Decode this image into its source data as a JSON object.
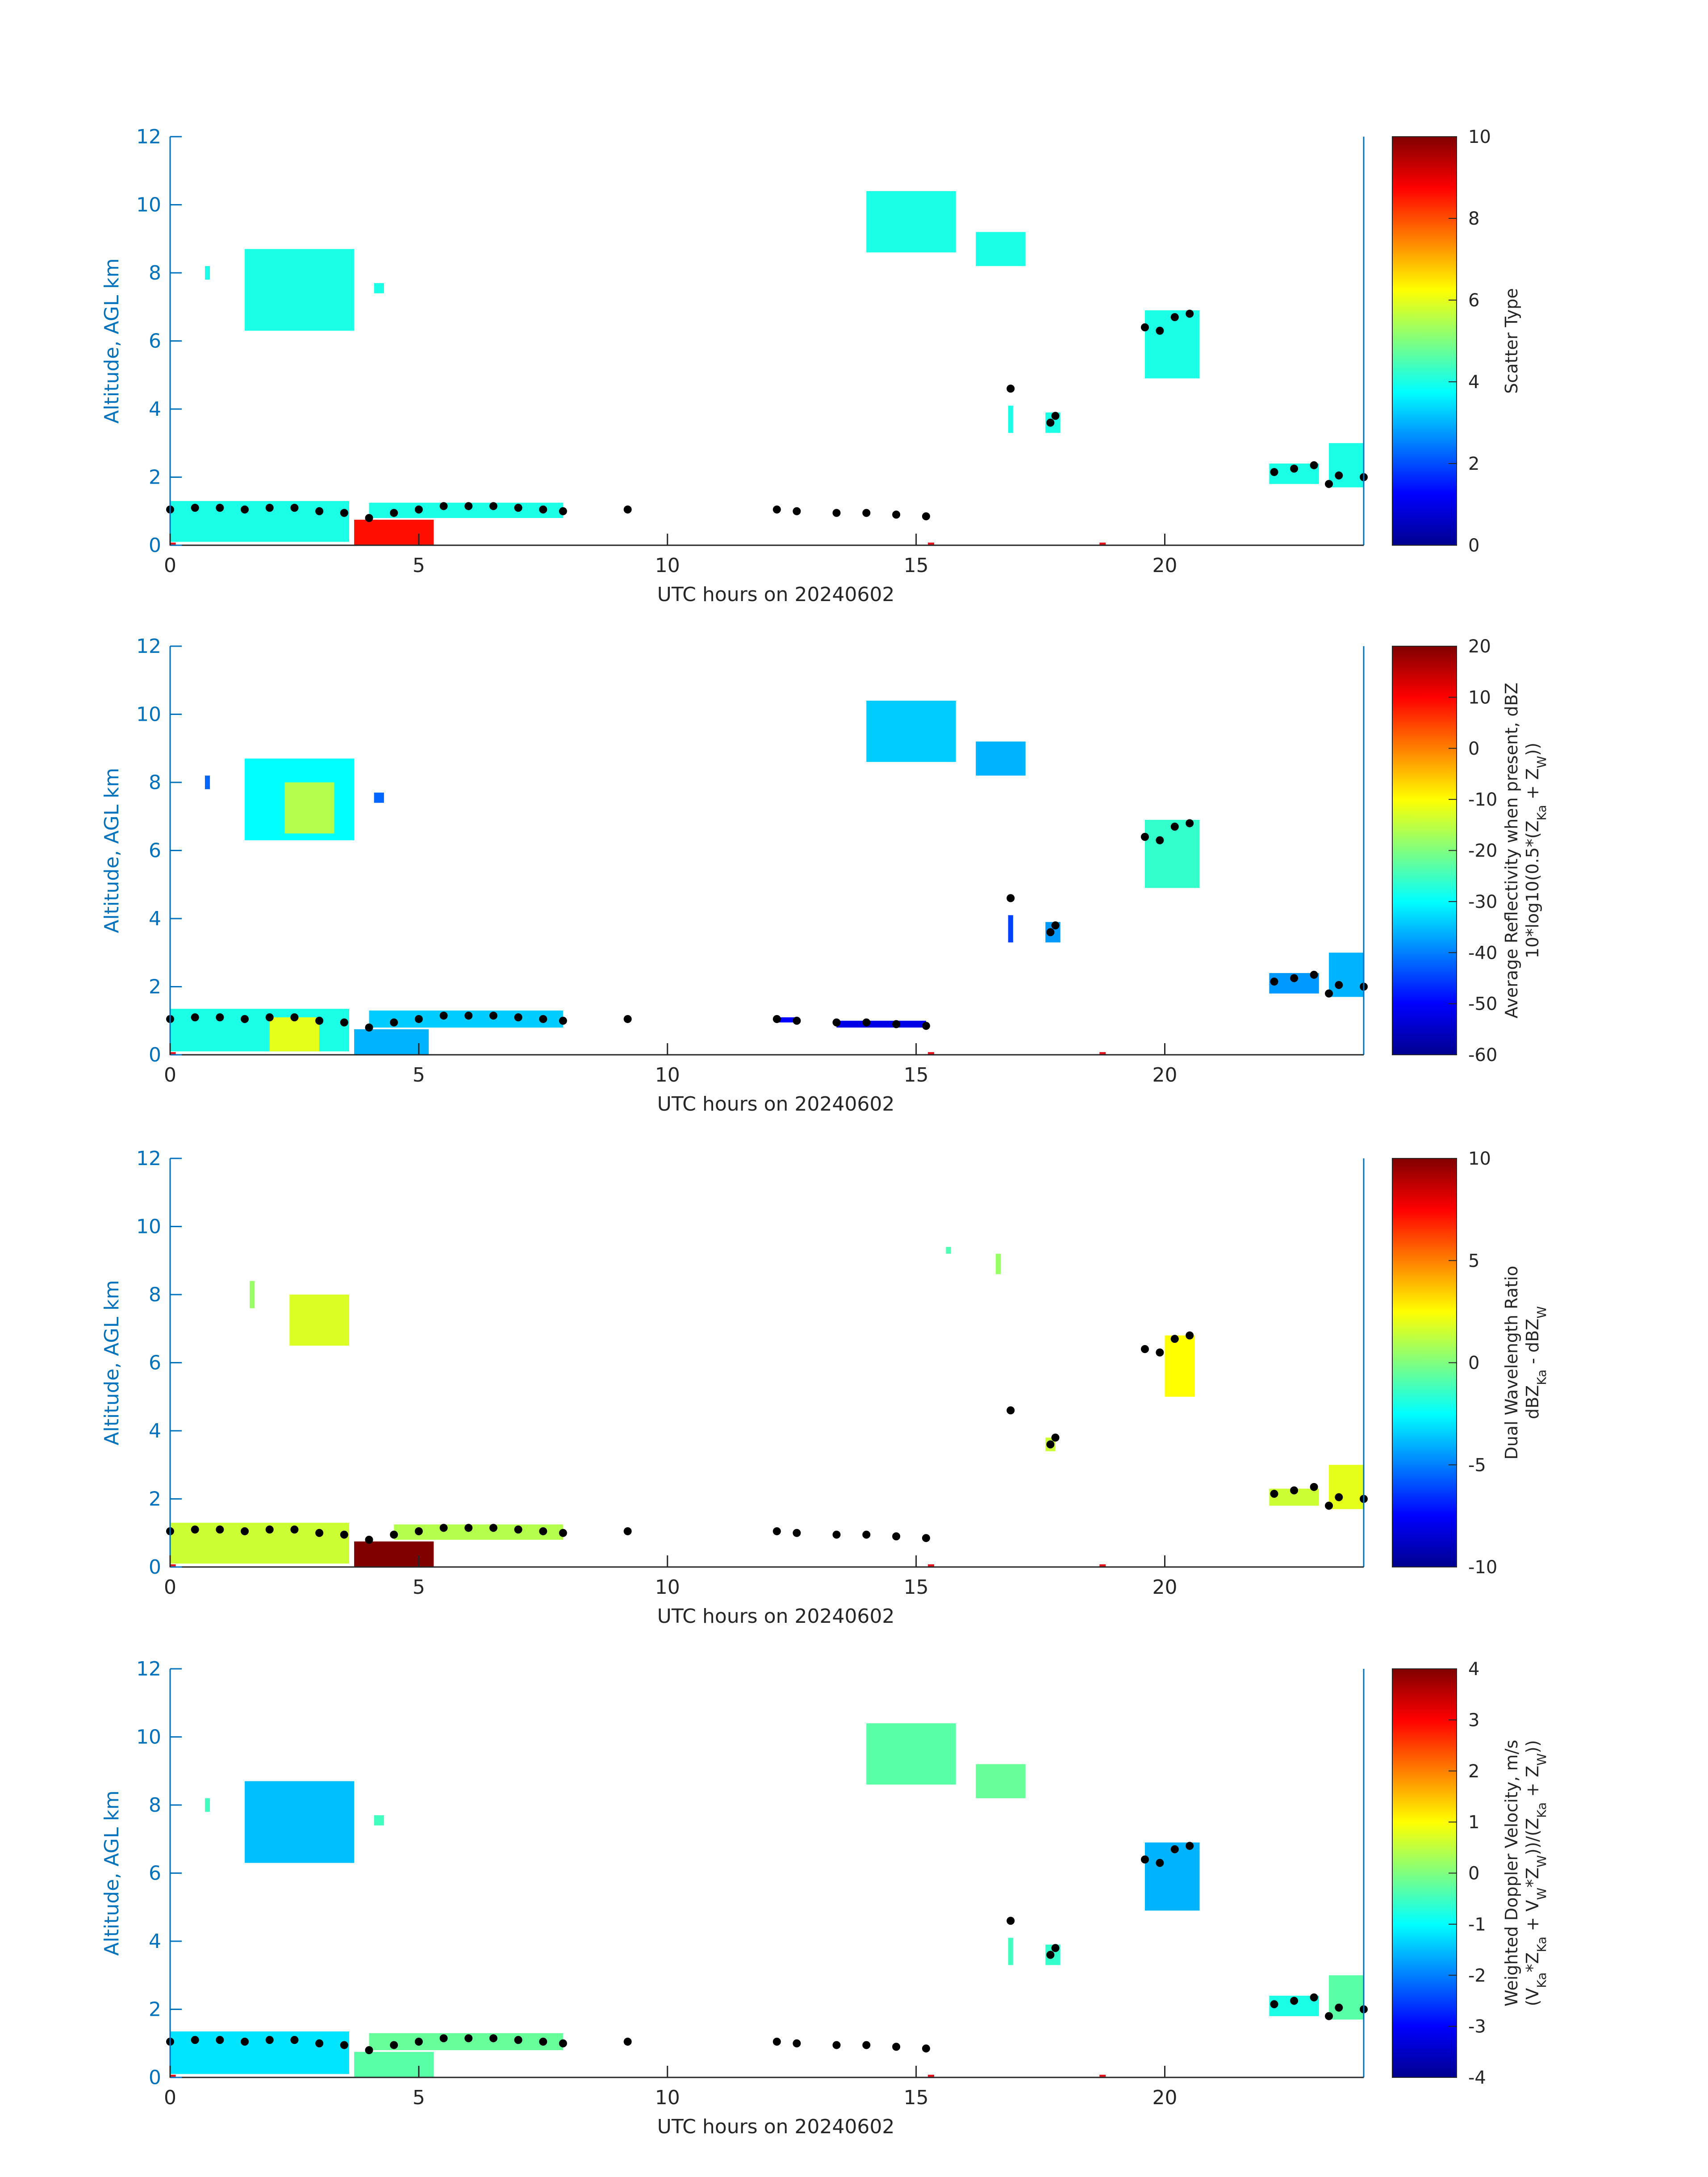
{
  "chart_data": [
    {
      "type": "heatmap",
      "xlabel": "UTC hours on 20240602",
      "ylabel": "Altitude, AGL km",
      "xlim": [
        0,
        24
      ],
      "ylim": [
        0,
        12
      ],
      "xticks": [
        0,
        5,
        10,
        15,
        20
      ],
      "yticks": [
        0,
        2,
        4,
        6,
        8,
        10,
        12
      ],
      "colorbar": {
        "label_lines": [
          "Scatter Type"
        ],
        "ticks": [
          0,
          2,
          4,
          6,
          8,
          10
        ],
        "range": [
          0,
          10
        ]
      },
      "regions": [
        {
          "x0": 0.0,
          "x1": 3.6,
          "y0": 0.1,
          "y1": 1.3,
          "value": 4.0
        },
        {
          "x0": 3.7,
          "x1": 5.3,
          "y0": 0.0,
          "y1": 0.75,
          "value": 8.6
        },
        {
          "x0": 4.0,
          "x1": 7.9,
          "y0": 0.8,
          "y1": 1.25,
          "value": 4.0
        },
        {
          "x0": 1.5,
          "x1": 3.7,
          "y0": 6.3,
          "y1": 8.7,
          "value": 4.0
        },
        {
          "x0": 0.7,
          "x1": 0.8,
          "y0": 7.8,
          "y1": 8.2,
          "value": 4.0
        },
        {
          "x0": 4.1,
          "x1": 4.3,
          "y0": 7.4,
          "y1": 7.7,
          "value": 4.0
        },
        {
          "x0": 14.0,
          "x1": 15.8,
          "y0": 8.6,
          "y1": 10.4,
          "value": 4.0
        },
        {
          "x0": 16.2,
          "x1": 17.2,
          "y0": 8.2,
          "y1": 9.2,
          "value": 4.0
        },
        {
          "x0": 19.6,
          "x1": 20.7,
          "y0": 4.9,
          "y1": 6.9,
          "value": 4.0
        },
        {
          "x0": 16.85,
          "x1": 16.95,
          "y0": 3.3,
          "y1": 4.1,
          "value": 4.0
        },
        {
          "x0": 17.6,
          "x1": 17.9,
          "y0": 3.3,
          "y1": 3.9,
          "value": 4.0
        },
        {
          "x0": 22.1,
          "x1": 23.1,
          "y0": 1.8,
          "y1": 2.4,
          "value": 4.0
        },
        {
          "x0": 23.3,
          "x1": 24.0,
          "y0": 1.7,
          "y1": 3.0,
          "value": 4.0
        }
      ],
      "cloud_top_points": [
        {
          "x": 0.0,
          "y": 1.05
        },
        {
          "x": 0.5,
          "y": 1.1
        },
        {
          "x": 1.0,
          "y": 1.1
        },
        {
          "x": 1.5,
          "y": 1.05
        },
        {
          "x": 2.0,
          "y": 1.1
        },
        {
          "x": 2.5,
          "y": 1.1
        },
        {
          "x": 3.0,
          "y": 1.0
        },
        {
          "x": 3.5,
          "y": 0.95
        },
        {
          "x": 4.0,
          "y": 0.8
        },
        {
          "x": 4.5,
          "y": 0.95
        },
        {
          "x": 5.0,
          "y": 1.05
        },
        {
          "x": 5.5,
          "y": 1.15
        },
        {
          "x": 6.0,
          "y": 1.15
        },
        {
          "x": 6.5,
          "y": 1.15
        },
        {
          "x": 7.0,
          "y": 1.1
        },
        {
          "x": 7.5,
          "y": 1.05
        },
        {
          "x": 7.9,
          "y": 1.0
        },
        {
          "x": 9.2,
          "y": 1.05
        },
        {
          "x": 12.2,
          "y": 1.05
        },
        {
          "x": 12.6,
          "y": 1.0
        },
        {
          "x": 13.4,
          "y": 0.95
        },
        {
          "x": 14.0,
          "y": 0.95
        },
        {
          "x": 14.6,
          "y": 0.9
        },
        {
          "x": 15.2,
          "y": 0.85
        },
        {
          "x": 16.9,
          "y": 4.6
        },
        {
          "x": 17.7,
          "y": 3.6
        },
        {
          "x": 17.8,
          "y": 3.8
        },
        {
          "x": 19.6,
          "y": 6.4
        },
        {
          "x": 19.9,
          "y": 6.3
        },
        {
          "x": 20.2,
          "y": 6.7
        },
        {
          "x": 20.5,
          "y": 6.8
        },
        {
          "x": 22.2,
          "y": 2.15
        },
        {
          "x": 22.6,
          "y": 2.25
        },
        {
          "x": 23.0,
          "y": 2.35
        },
        {
          "x": 23.3,
          "y": 1.8
        },
        {
          "x": 23.5,
          "y": 2.05
        },
        {
          "x": 24.0,
          "y": 2.0
        }
      ],
      "surface_marks_x": [
        0.05,
        15.3,
        18.75
      ]
    },
    {
      "type": "heatmap",
      "xlabel": "UTC hours on 20240602",
      "ylabel": "Altitude, AGL km",
      "xlim": [
        0,
        24
      ],
      "ylim": [
        0,
        12
      ],
      "xticks": [
        0,
        5,
        10,
        15,
        20
      ],
      "yticks": [
        0,
        2,
        4,
        6,
        8,
        10,
        12
      ],
      "colorbar": {
        "label_lines": [
          "Average Reflectivity when present, dBZ",
          "10*log10(0.5*(Z_Ka + Z_W))"
        ],
        "ticks": [
          -60,
          -50,
          -40,
          -30,
          -20,
          -10,
          0,
          10,
          20
        ],
        "range": [
          -60,
          20
        ]
      },
      "regions": [
        {
          "x0": 0.0,
          "x1": 3.6,
          "y0": 0.1,
          "y1": 1.35,
          "value": -28
        },
        {
          "x0": 2.0,
          "x1": 3.0,
          "y0": 0.1,
          "y1": 1.1,
          "value": -12
        },
        {
          "x0": 3.7,
          "x1": 5.2,
          "y0": 0.0,
          "y1": 0.75,
          "value": -36
        },
        {
          "x0": 4.0,
          "x1": 7.9,
          "y0": 0.8,
          "y1": 1.3,
          "value": -34
        },
        {
          "x0": 1.5,
          "x1": 3.7,
          "y0": 6.3,
          "y1": 8.7,
          "value": -30
        },
        {
          "x0": 2.3,
          "x1": 3.3,
          "y0": 6.5,
          "y1": 8.0,
          "value": -16
        },
        {
          "x0": 0.7,
          "x1": 0.8,
          "y0": 7.8,
          "y1": 8.2,
          "value": -42
        },
        {
          "x0": 4.1,
          "x1": 4.3,
          "y0": 7.4,
          "y1": 7.7,
          "value": -42
        },
        {
          "x0": 14.0,
          "x1": 15.8,
          "y0": 8.6,
          "y1": 10.4,
          "value": -34
        },
        {
          "x0": 16.2,
          "x1": 17.2,
          "y0": 8.2,
          "y1": 9.2,
          "value": -36
        },
        {
          "x0": 19.6,
          "x1": 20.7,
          "y0": 4.9,
          "y1": 6.9,
          "value": -26
        },
        {
          "x0": 16.85,
          "x1": 16.95,
          "y0": 3.3,
          "y1": 4.1,
          "value": -45
        },
        {
          "x0": 17.6,
          "x1": 17.9,
          "y0": 3.3,
          "y1": 3.9,
          "value": -38
        },
        {
          "x0": 22.1,
          "x1": 23.1,
          "y0": 1.8,
          "y1": 2.4,
          "value": -38
        },
        {
          "x0": 23.3,
          "x1": 24.0,
          "y0": 1.7,
          "y1": 3.0,
          "value": -36
        },
        {
          "x0": 12.2,
          "x1": 12.6,
          "y0": 0.95,
          "y1": 1.1,
          "value": -50
        },
        {
          "x0": 13.4,
          "x1": 15.2,
          "y0": 0.8,
          "y1": 1.0,
          "value": -52
        }
      ],
      "cloud_top_points": [
        {
          "x": 0.0,
          "y": 1.05
        },
        {
          "x": 0.5,
          "y": 1.1
        },
        {
          "x": 1.0,
          "y": 1.1
        },
        {
          "x": 1.5,
          "y": 1.05
        },
        {
          "x": 2.0,
          "y": 1.1
        },
        {
          "x": 2.5,
          "y": 1.1
        },
        {
          "x": 3.0,
          "y": 1.0
        },
        {
          "x": 3.5,
          "y": 0.95
        },
        {
          "x": 4.0,
          "y": 0.8
        },
        {
          "x": 4.5,
          "y": 0.95
        },
        {
          "x": 5.0,
          "y": 1.05
        },
        {
          "x": 5.5,
          "y": 1.15
        },
        {
          "x": 6.0,
          "y": 1.15
        },
        {
          "x": 6.5,
          "y": 1.15
        },
        {
          "x": 7.0,
          "y": 1.1
        },
        {
          "x": 7.5,
          "y": 1.05
        },
        {
          "x": 7.9,
          "y": 1.0
        },
        {
          "x": 9.2,
          "y": 1.05
        },
        {
          "x": 12.2,
          "y": 1.05
        },
        {
          "x": 12.6,
          "y": 1.0
        },
        {
          "x": 13.4,
          "y": 0.95
        },
        {
          "x": 14.0,
          "y": 0.95
        },
        {
          "x": 14.6,
          "y": 0.9
        },
        {
          "x": 15.2,
          "y": 0.85
        },
        {
          "x": 16.9,
          "y": 4.6
        },
        {
          "x": 17.7,
          "y": 3.6
        },
        {
          "x": 17.8,
          "y": 3.8
        },
        {
          "x": 19.6,
          "y": 6.4
        },
        {
          "x": 19.9,
          "y": 6.3
        },
        {
          "x": 20.2,
          "y": 6.7
        },
        {
          "x": 20.5,
          "y": 6.8
        },
        {
          "x": 22.2,
          "y": 2.15
        },
        {
          "x": 22.6,
          "y": 2.25
        },
        {
          "x": 23.0,
          "y": 2.35
        },
        {
          "x": 23.3,
          "y": 1.8
        },
        {
          "x": 23.5,
          "y": 2.05
        },
        {
          "x": 24.0,
          "y": 2.0
        }
      ],
      "surface_marks_x": [
        0.05,
        15.3,
        18.75
      ]
    },
    {
      "type": "heatmap",
      "xlabel": "UTC hours on 20240602",
      "ylabel": "Altitude, AGL km",
      "xlim": [
        0,
        24
      ],
      "ylim": [
        0,
        12
      ],
      "xticks": [
        0,
        5,
        10,
        15,
        20
      ],
      "yticks": [
        0,
        2,
        4,
        6,
        8,
        10,
        12
      ],
      "colorbar": {
        "label_lines": [
          "Dual Wavelength Ratio",
          "dBZ_Ka - dBZ_W"
        ],
        "ticks": [
          -10,
          -5,
          0,
          5,
          10
        ],
        "range": [
          -10,
          10
        ]
      },
      "regions": [
        {
          "x0": 0.0,
          "x1": 3.6,
          "y0": 0.1,
          "y1": 1.3,
          "value": 1.5
        },
        {
          "x0": 3.7,
          "x1": 5.3,
          "y0": 0.0,
          "y1": 0.75,
          "value": 10
        },
        {
          "x0": 4.5,
          "x1": 7.9,
          "y0": 0.8,
          "y1": 1.25,
          "value": 1.0
        },
        {
          "x0": 1.6,
          "x1": 1.7,
          "y0": 7.6,
          "y1": 8.4,
          "value": 0.5
        },
        {
          "x0": 2.4,
          "x1": 3.6,
          "y0": 6.5,
          "y1": 8.0,
          "value": 1.8
        },
        {
          "x0": 15.6,
          "x1": 15.7,
          "y0": 9.2,
          "y1": 9.4,
          "value": -1
        },
        {
          "x0": 16.6,
          "x1": 16.7,
          "y0": 8.6,
          "y1": 9.2,
          "value": 0.5
        },
        {
          "x0": 20.0,
          "x1": 20.6,
          "y0": 5.0,
          "y1": 6.8,
          "value": 2.5
        },
        {
          "x0": 17.6,
          "x1": 17.8,
          "y0": 3.4,
          "y1": 3.8,
          "value": 1.5
        },
        {
          "x0": 22.1,
          "x1": 23.1,
          "y0": 1.8,
          "y1": 2.3,
          "value": 1.5
        },
        {
          "x0": 23.3,
          "x1": 24.0,
          "y0": 1.7,
          "y1": 3.0,
          "value": 2.0
        }
      ],
      "cloud_top_points": [
        {
          "x": 0.0,
          "y": 1.05
        },
        {
          "x": 0.5,
          "y": 1.1
        },
        {
          "x": 1.0,
          "y": 1.1
        },
        {
          "x": 1.5,
          "y": 1.05
        },
        {
          "x": 2.0,
          "y": 1.1
        },
        {
          "x": 2.5,
          "y": 1.1
        },
        {
          "x": 3.0,
          "y": 1.0
        },
        {
          "x": 3.5,
          "y": 0.95
        },
        {
          "x": 4.0,
          "y": 0.8
        },
        {
          "x": 4.5,
          "y": 0.95
        },
        {
          "x": 5.0,
          "y": 1.05
        },
        {
          "x": 5.5,
          "y": 1.15
        },
        {
          "x": 6.0,
          "y": 1.15
        },
        {
          "x": 6.5,
          "y": 1.15
        },
        {
          "x": 7.0,
          "y": 1.1
        },
        {
          "x": 7.5,
          "y": 1.05
        },
        {
          "x": 7.9,
          "y": 1.0
        },
        {
          "x": 9.2,
          "y": 1.05
        },
        {
          "x": 12.2,
          "y": 1.05
        },
        {
          "x": 12.6,
          "y": 1.0
        },
        {
          "x": 13.4,
          "y": 0.95
        },
        {
          "x": 14.0,
          "y": 0.95
        },
        {
          "x": 14.6,
          "y": 0.9
        },
        {
          "x": 15.2,
          "y": 0.85
        },
        {
          "x": 16.9,
          "y": 4.6
        },
        {
          "x": 17.7,
          "y": 3.6
        },
        {
          "x": 17.8,
          "y": 3.8
        },
        {
          "x": 19.6,
          "y": 6.4
        },
        {
          "x": 19.9,
          "y": 6.3
        },
        {
          "x": 20.2,
          "y": 6.7
        },
        {
          "x": 20.5,
          "y": 6.8
        },
        {
          "x": 22.2,
          "y": 2.15
        },
        {
          "x": 22.6,
          "y": 2.25
        },
        {
          "x": 23.0,
          "y": 2.35
        },
        {
          "x": 23.3,
          "y": 1.8
        },
        {
          "x": 23.5,
          "y": 2.05
        },
        {
          "x": 24.0,
          "y": 2.0
        }
      ],
      "surface_marks_x": [
        0.05,
        15.3,
        18.75
      ]
    },
    {
      "type": "heatmap",
      "xlabel": "UTC hours on 20240602",
      "ylabel": "Altitude, AGL km",
      "xlim": [
        0,
        24
      ],
      "ylim": [
        0,
        12
      ],
      "xticks": [
        0,
        5,
        10,
        15,
        20
      ],
      "yticks": [
        0,
        2,
        4,
        6,
        8,
        10,
        12
      ],
      "colorbar": {
        "label_lines": [
          "Weighted Doppler Velocity, m/s",
          "(V_Ka*Z_Ka + V_W*Z_W))/(Z_Ka + Z_W))"
        ],
        "ticks": [
          -4,
          -3,
          -2,
          -1,
          0,
          1,
          2,
          3,
          4
        ],
        "range": [
          -4,
          4
        ]
      },
      "regions": [
        {
          "x0": 0.0,
          "x1": 3.6,
          "y0": 0.1,
          "y1": 1.35,
          "value": -1.2
        },
        {
          "x0": 3.7,
          "x1": 5.3,
          "y0": 0.0,
          "y1": 0.75,
          "value": -0.3
        },
        {
          "x0": 4.0,
          "x1": 7.9,
          "y0": 0.8,
          "y1": 1.3,
          "value": -0.2
        },
        {
          "x0": 1.5,
          "x1": 3.7,
          "y0": 6.3,
          "y1": 8.7,
          "value": -1.5
        },
        {
          "x0": 0.7,
          "x1": 0.8,
          "y0": 7.8,
          "y1": 8.2,
          "value": -0.5
        },
        {
          "x0": 4.1,
          "x1": 4.3,
          "y0": 7.4,
          "y1": 7.7,
          "value": -0.5
        },
        {
          "x0": 14.0,
          "x1": 15.8,
          "y0": 8.6,
          "y1": 10.4,
          "value": -0.3
        },
        {
          "x0": 16.2,
          "x1": 17.2,
          "y0": 8.2,
          "y1": 9.2,
          "value": -0.2
        },
        {
          "x0": 19.6,
          "x1": 20.7,
          "y0": 4.9,
          "y1": 6.9,
          "value": -1.6
        },
        {
          "x0": 16.85,
          "x1": 16.95,
          "y0": 3.3,
          "y1": 4.1,
          "value": -0.5
        },
        {
          "x0": 17.6,
          "x1": 17.9,
          "y0": 3.3,
          "y1": 3.9,
          "value": -0.6
        },
        {
          "x0": 22.1,
          "x1": 23.1,
          "y0": 1.8,
          "y1": 2.4,
          "value": -0.8
        },
        {
          "x0": 23.3,
          "x1": 24.0,
          "y0": 1.7,
          "y1": 3.0,
          "value": -0.3
        }
      ],
      "cloud_top_points": [
        {
          "x": 0.0,
          "y": 1.05
        },
        {
          "x": 0.5,
          "y": 1.1
        },
        {
          "x": 1.0,
          "y": 1.1
        },
        {
          "x": 1.5,
          "y": 1.05
        },
        {
          "x": 2.0,
          "y": 1.1
        },
        {
          "x": 2.5,
          "y": 1.1
        },
        {
          "x": 3.0,
          "y": 1.0
        },
        {
          "x": 3.5,
          "y": 0.95
        },
        {
          "x": 4.0,
          "y": 0.8
        },
        {
          "x": 4.5,
          "y": 0.95
        },
        {
          "x": 5.0,
          "y": 1.05
        },
        {
          "x": 5.5,
          "y": 1.15
        },
        {
          "x": 6.0,
          "y": 1.15
        },
        {
          "x": 6.5,
          "y": 1.15
        },
        {
          "x": 7.0,
          "y": 1.1
        },
        {
          "x": 7.5,
          "y": 1.05
        },
        {
          "x": 7.9,
          "y": 1.0
        },
        {
          "x": 9.2,
          "y": 1.05
        },
        {
          "x": 12.2,
          "y": 1.05
        },
        {
          "x": 12.6,
          "y": 1.0
        },
        {
          "x": 13.4,
          "y": 0.95
        },
        {
          "x": 14.0,
          "y": 0.95
        },
        {
          "x": 14.6,
          "y": 0.9
        },
        {
          "x": 15.2,
          "y": 0.85
        },
        {
          "x": 16.9,
          "y": 4.6
        },
        {
          "x": 17.7,
          "y": 3.6
        },
        {
          "x": 17.8,
          "y": 3.8
        },
        {
          "x": 19.6,
          "y": 6.4
        },
        {
          "x": 19.9,
          "y": 6.3
        },
        {
          "x": 20.2,
          "y": 6.7
        },
        {
          "x": 20.5,
          "y": 6.8
        },
        {
          "x": 22.2,
          "y": 2.15
        },
        {
          "x": 22.6,
          "y": 2.25
        },
        {
          "x": 23.0,
          "y": 2.35
        },
        {
          "x": 23.3,
          "y": 1.8
        },
        {
          "x": 23.5,
          "y": 2.05
        },
        {
          "x": 24.0,
          "y": 2.0
        }
      ],
      "surface_marks_x": [
        0.05,
        15.3,
        18.75
      ]
    }
  ],
  "colors": {
    "axis_blue": "#0072BD",
    "text_dark": "#262626",
    "cloud_top_dots": "#000000",
    "surface_marks": "#e8141c"
  }
}
